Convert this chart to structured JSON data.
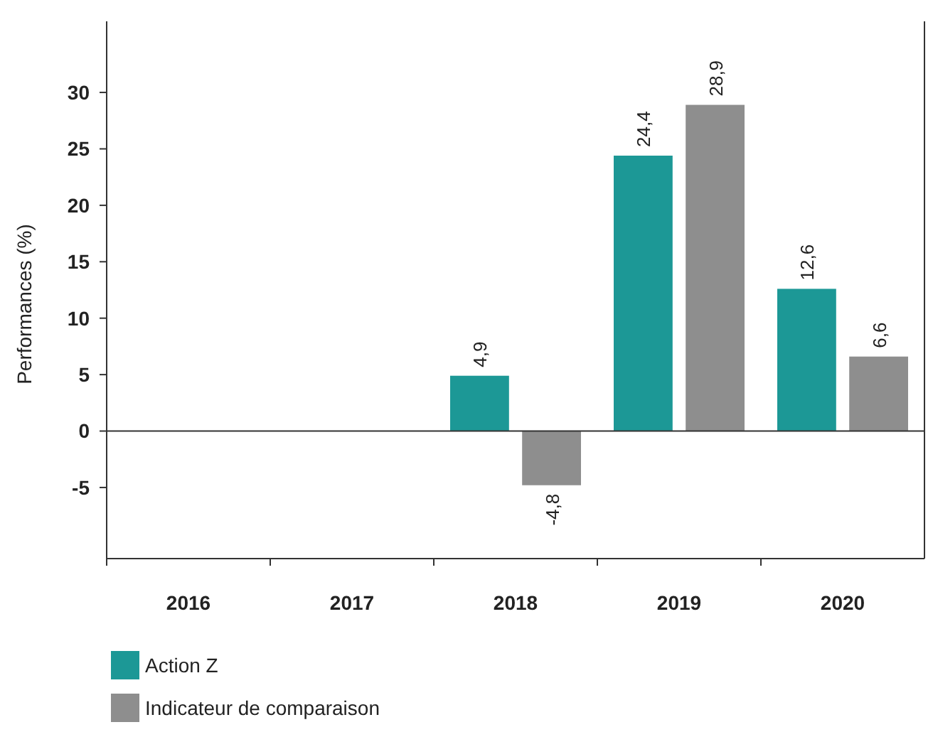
{
  "chart_data": {
    "type": "bar",
    "categories": [
      "2016",
      "2017",
      "2018",
      "2019",
      "2020"
    ],
    "ylabel": "Performances (%)",
    "ylim": [
      -11.3,
      36.3
    ],
    "yticks": [
      {
        "value": -5,
        "label": "-5"
      },
      0,
      5,
      10,
      15,
      20,
      25,
      30
    ],
    "ref_lines": [
      {
        "axis": "y",
        "value": 0
      }
    ],
    "legend": "bottom",
    "series": [
      {
        "name": "Action Z",
        "color": "#1c9896",
        "values": [
          null,
          null,
          4.9,
          24.4,
          12.6
        ],
        "value_labels": [
          null,
          null,
          "4,9",
          "24,4",
          "12,6"
        ]
      },
      {
        "name": "Indicateur de comparaison",
        "color": "#8e8e8e",
        "values": [
          null,
          null,
          -4.8,
          28.9,
          6.6
        ],
        "value_labels": [
          null,
          null,
          "-4,8",
          "28,9",
          "6,6"
        ]
      }
    ]
  }
}
